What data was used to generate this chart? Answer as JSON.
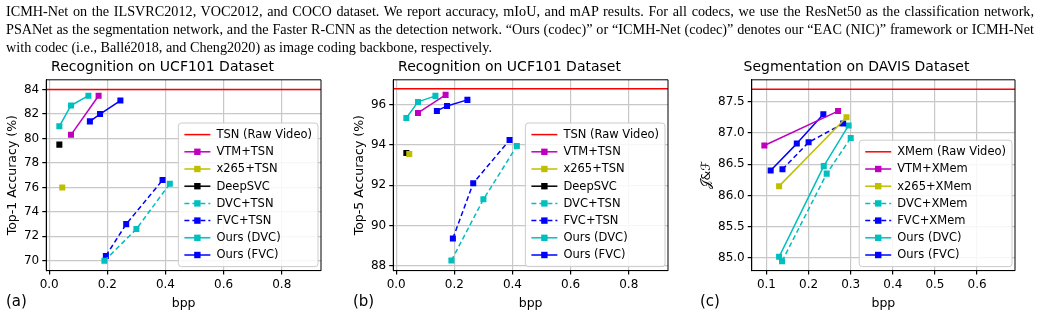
{
  "chart_data": [
    {
      "type": "other",
      "annotations": [
        "ICMH-Net on the ILSVRC2012, VOC2012, and COCO dataset. We report accuracy, mIoU, and mAP results. For all codecs, we use the ResNet50 as the classification network, PSANet as the segmentation network, and the Faster R-CNN as the detection network. “Ours (codec)” or “ICMH-Net (codec)” denotes our “EAC (NIC)” framework or ICMH-Net with codec (i.e., Ballé2018, and Cheng2020) as image coding backbone, respectively."
      ]
    },
    {
      "type": "line",
      "title": "Recognition on UCF101 Dataset",
      "xlabel": "bpp",
      "ylabel": "Top-1 Accuracy (%)",
      "annotations": [
        "(a)"
      ],
      "xlim": [
        -0.01,
        0.935
      ],
      "xticks": [
        {
          "value": 0,
          "label": "0.0"
        },
        0.2,
        0.4,
        0.6,
        0.8
      ],
      "ylim": [
        69.2,
        84.8
      ],
      "yticks": [
        70,
        72,
        74,
        76,
        78,
        80,
        82,
        84
      ],
      "grid": true,
      "legend": "bottom right",
      "marker": "square",
      "series": [
        {
          "name": "TSN (Raw Video)",
          "color": "#ff0000",
          "marker": "none",
          "x": [
            -0.01,
            0.935
          ],
          "values": [
            84.0,
            84.0
          ]
        },
        {
          "name": "VTM+TSN",
          "color": "#bf00bf",
          "x": [
            0.075,
            0.17
          ],
          "values": [
            80.3,
            83.5
          ]
        },
        {
          "name": "x265+TSN",
          "color": "#bfbf00",
          "x": [
            0.045
          ],
          "values": [
            76.0
          ]
        },
        {
          "name": "DeepSVC",
          "color": "#000000",
          "x": [
            0.035
          ],
          "values": [
            79.5
          ]
        },
        {
          "name": "DVC+TSN",
          "color": "#00bfbf",
          "line_style": "dashed",
          "x": [
            0.19,
            0.3,
            0.415
          ],
          "values": [
            70.0,
            72.6,
            76.3
          ]
        },
        {
          "name": "FVC+TSN",
          "color": "#0000ff",
          "line_style": "dashed",
          "x": [
            0.195,
            0.265,
            0.39
          ],
          "values": [
            70.4,
            73.0,
            76.6
          ]
        },
        {
          "name": "Ours (DVC)",
          "color": "#00bfbf",
          "x": [
            0.035,
            0.075,
            0.135
          ],
          "values": [
            81.0,
            82.7,
            83.5
          ]
        },
        {
          "name": "Ours (FVC)",
          "color": "#0000ff",
          "x": [
            0.14,
            0.175,
            0.245
          ],
          "values": [
            81.4,
            82.0,
            83.1
          ]
        }
      ]
    },
    {
      "type": "line",
      "title": "Recognition on UCF101 Dataset",
      "xlabel": "bpp",
      "ylabel": "Top-5 Accuracy (%)",
      "annotations": [
        "(b)"
      ],
      "xlim": [
        -0.01,
        0.935
      ],
      "xticks": [
        {
          "value": 0,
          "label": "0.0"
        },
        0.2,
        0.4,
        0.6,
        0.8
      ],
      "ylim": [
        87.75,
        97.25
      ],
      "yticks": [
        88,
        90,
        92,
        94,
        96
      ],
      "grid": true,
      "legend": "bottom right",
      "marker": "square",
      "series": [
        {
          "name": "TSN (Raw Video)",
          "color": "#ff0000",
          "marker": "none",
          "x": [
            -0.01,
            0.935
          ],
          "values": [
            96.8,
            96.8
          ]
        },
        {
          "name": "VTM+TSN",
          "color": "#bf00bf",
          "x": [
            0.075,
            0.17
          ],
          "values": [
            95.6,
            96.5
          ]
        },
        {
          "name": "x265+TSN",
          "color": "#bfbf00",
          "x": [
            0.045
          ],
          "values": [
            93.55
          ]
        },
        {
          "name": "DeepSVC",
          "color": "#000000",
          "x": [
            0.035
          ],
          "values": [
            93.6
          ]
        },
        {
          "name": "DVC+TSN",
          "color": "#00bfbf",
          "line_style": "dashed",
          "x": [
            0.19,
            0.3,
            0.415
          ],
          "values": [
            88.25,
            91.3,
            93.95
          ]
        },
        {
          "name": "FVC+TSN",
          "color": "#0000ff",
          "line_style": "dashed",
          "x": [
            0.195,
            0.265,
            0.39
          ],
          "values": [
            89.35,
            92.1,
            94.25
          ]
        },
        {
          "name": "Ours (DVC)",
          "color": "#00bfbf",
          "x": [
            0.035,
            0.075,
            0.135
          ],
          "values": [
            95.35,
            96.15,
            96.45
          ]
        },
        {
          "name": "Ours (FVC)",
          "color": "#0000ff",
          "x": [
            0.14,
            0.175,
            0.245
          ],
          "values": [
            95.7,
            95.95,
            96.25
          ]
        }
      ]
    },
    {
      "type": "line",
      "title": "Segmentation on DAVIS Dataset",
      "xlabel": "bpp",
      "ylabel": "𝒥&ℱ",
      "annotations": [
        "(c)"
      ],
      "xlim": [
        0.065,
        0.69
      ],
      "xticks": [
        0.1,
        0.2,
        0.3,
        0.4,
        0.5,
        0.6
      ],
      "ylim": [
        84.8,
        87.85
      ],
      "yticks": [
        {
          "value": 85,
          "label": "85.0"
        },
        85.5,
        {
          "value": 86,
          "label": "86.0"
        },
        86.5,
        {
          "value": 87,
          "label": "87.0"
        },
        87.5
      ],
      "grid": true,
      "legend": "bottom right",
      "marker": "square",
      "series": [
        {
          "name": "XMem (Raw Video)",
          "color": "#ff0000",
          "marker": "none",
          "x": [
            0.065,
            0.69
          ],
          "values": [
            87.7,
            87.7
          ]
        },
        {
          "name": "VTM+XMem",
          "color": "#bf00bf",
          "x": [
            0.095,
            0.27
          ],
          "values": [
            86.8,
            87.35
          ]
        },
        {
          "name": "x265+XMem",
          "color": "#bfbf00",
          "x": [
            0.13,
            0.29
          ],
          "values": [
            86.15,
            87.25
          ]
        },
        {
          "name": "DVC+XMem",
          "color": "#00bfbf",
          "line_style": "dashed",
          "x": [
            0.137,
            0.243,
            0.3
          ],
          "values": [
            84.95,
            86.35,
            86.92
          ]
        },
        {
          "name": "FVC+XMem",
          "color": "#0000ff",
          "line_style": "dashed",
          "x": [
            0.138,
            0.2,
            0.282
          ],
          "values": [
            86.42,
            86.85,
            87.15
          ]
        },
        {
          "name": "Ours (DVC)",
          "color": "#00bfbf",
          "x": [
            0.13,
            0.236,
            0.295
          ],
          "values": [
            85.02,
            86.47,
            87.12
          ]
        },
        {
          "name": "Ours (FVC)",
          "color": "#0000ff",
          "x": [
            0.11,
            0.172,
            0.235
          ],
          "values": [
            86.4,
            86.83,
            87.3
          ]
        }
      ]
    }
  ]
}
